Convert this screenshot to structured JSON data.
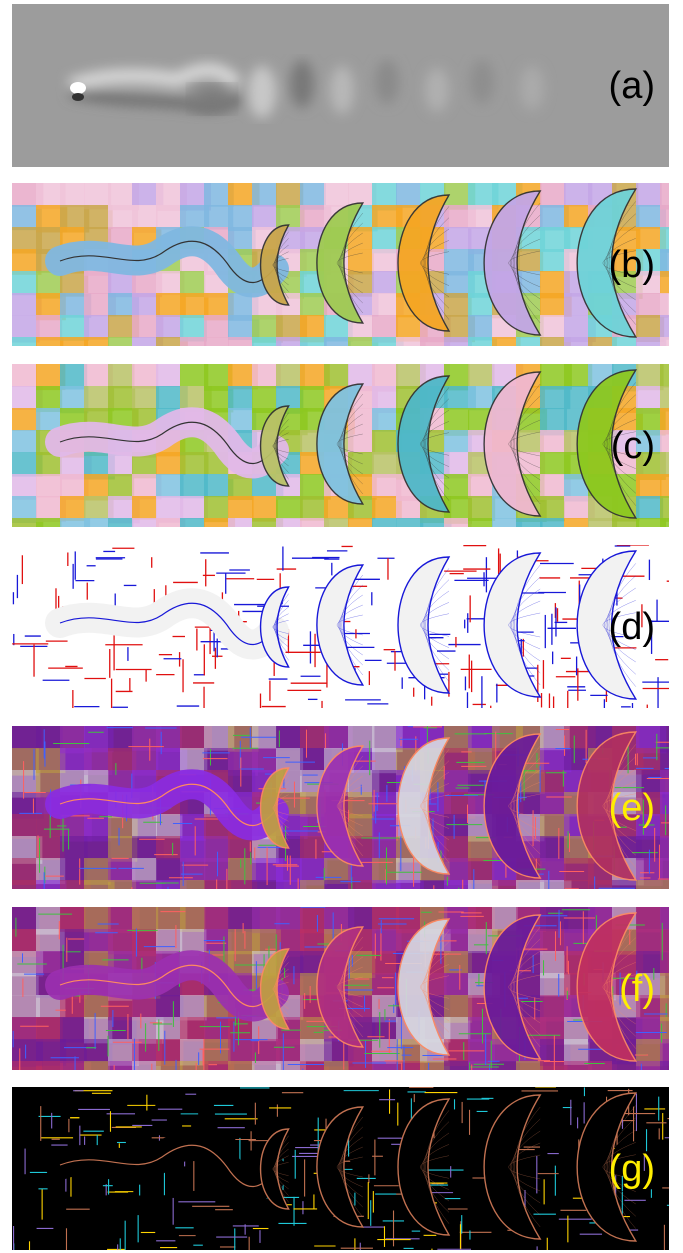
{
  "figure": {
    "panels": [
      {
        "label": "(a)",
        "label_color": "#000000",
        "style": "grayscale-vorticity"
      },
      {
        "label": "(b)",
        "label_color": "#000000",
        "style": "colored-streamline-segmentation",
        "palette": [
          "#e8a9c8",
          "#7fb7e0",
          "#c9a64a",
          "#9fcb52",
          "#f5a623",
          "#c3a6e6",
          "#6ed3d8",
          "#f0c3d9"
        ]
      },
      {
        "label": "(c)",
        "label_color": "#000000",
        "style": "colored-streamline-segmentation",
        "palette": [
          "#9fbf30",
          "#e0b8e8",
          "#b9c266",
          "#7fc2e0",
          "#4fb8c8",
          "#f0b8d0",
          "#8dc820",
          "#f5a623"
        ]
      },
      {
        "label": "(d)",
        "label_color": "#000000",
        "style": "red-blue-boundary-graph",
        "palette": [
          "#e01010",
          "#1818d8",
          "#cfcfcf"
        ]
      },
      {
        "label": "(e)",
        "label_color": "#ffee00",
        "style": "purple-red-overlay",
        "palette": [
          "#b03060",
          "#8a2be2",
          "#c0a040",
          "#9b30b0",
          "#d7d7e0",
          "#6a1b9a"
        ]
      },
      {
        "label": "(f)",
        "label_color": "#ffee00",
        "style": "purple-red-overlay",
        "palette": [
          "#c03060",
          "#9b30b0",
          "#c0a040",
          "#b03080",
          "#d7d7e0",
          "#6a1b9a"
        ]
      },
      {
        "label": "(g)",
        "label_color": "#ffee00",
        "style": "black-multicolor-boundaries",
        "palette": [
          "#ffd400",
          "#1ec8d8",
          "#c07050",
          "#8a6ad0"
        ]
      }
    ]
  }
}
